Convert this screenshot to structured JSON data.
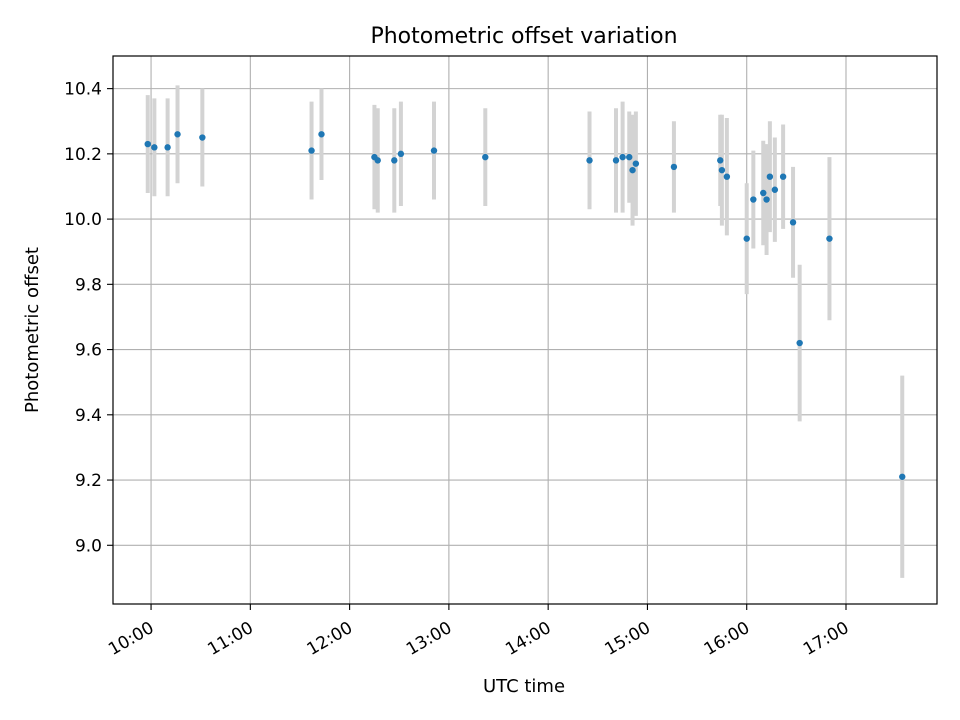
{
  "chart_data": {
    "type": "scatter",
    "title": "Photometric offset variation",
    "xlabel": "UTC time",
    "ylabel": "Photometric offset",
    "xlim": [
      "09:37",
      "17:55"
    ],
    "ylim": [
      8.82,
      10.5
    ],
    "x_ticks": [
      "10:00",
      "11:00",
      "12:00",
      "13:00",
      "14:00",
      "15:00",
      "16:00",
      "17:00"
    ],
    "y_ticks": [
      "9.0",
      "9.2",
      "9.4",
      "9.6",
      "9.8",
      "10.0",
      "10.2",
      "10.4"
    ],
    "grid": true,
    "colors": {
      "point": "#1f77b4",
      "errorbar": "#d3d3d3",
      "grid": "#b0b0b0"
    },
    "series": [
      {
        "points": [
          {
            "x": "09:58",
            "y": 10.23,
            "err": 0.15
          },
          {
            "x": "10:02",
            "y": 10.22,
            "err": 0.15
          },
          {
            "x": "10:10",
            "y": 10.22,
            "err": 0.15
          },
          {
            "x": "10:16",
            "y": 10.26,
            "err": 0.15
          },
          {
            "x": "10:31",
            "y": 10.25,
            "err": 0.15
          },
          {
            "x": "11:37",
            "y": 10.21,
            "err": 0.15
          },
          {
            "x": "11:43",
            "y": 10.26,
            "err": 0.14
          },
          {
            "x": "12:15",
            "y": 10.19,
            "err": 0.16
          },
          {
            "x": "12:17",
            "y": 10.18,
            "err": 0.16
          },
          {
            "x": "12:27",
            "y": 10.18,
            "err": 0.16
          },
          {
            "x": "12:31",
            "y": 10.2,
            "err": 0.16
          },
          {
            "x": "12:51",
            "y": 10.21,
            "err": 0.15
          },
          {
            "x": "13:22",
            "y": 10.19,
            "err": 0.15
          },
          {
            "x": "14:25",
            "y": 10.18,
            "err": 0.15
          },
          {
            "x": "14:41",
            "y": 10.18,
            "err": 0.16
          },
          {
            "x": "14:45",
            "y": 10.19,
            "err": 0.17
          },
          {
            "x": "14:49",
            "y": 10.19,
            "err": 0.14
          },
          {
            "x": "14:51",
            "y": 10.15,
            "err": 0.17
          },
          {
            "x": "14:53",
            "y": 10.17,
            "err": 0.16
          },
          {
            "x": "15:16",
            "y": 10.16,
            "err": 0.14
          },
          {
            "x": "15:44",
            "y": 10.18,
            "err": 0.14
          },
          {
            "x": "15:45",
            "y": 10.15,
            "err": 0.17
          },
          {
            "x": "15:48",
            "y": 10.13,
            "err": 0.18
          },
          {
            "x": "16:00",
            "y": 9.94,
            "err": 0.17
          },
          {
            "x": "16:04",
            "y": 10.06,
            "err": 0.15
          },
          {
            "x": "16:10",
            "y": 10.08,
            "err": 0.16
          },
          {
            "x": "16:12",
            "y": 10.06,
            "err": 0.17
          },
          {
            "x": "16:14",
            "y": 10.13,
            "err": 0.17
          },
          {
            "x": "16:17",
            "y": 10.09,
            "err": 0.16
          },
          {
            "x": "16:22",
            "y": 10.13,
            "err": 0.16
          },
          {
            "x": "16:28",
            "y": 9.99,
            "err": 0.17
          },
          {
            "x": "16:32",
            "y": 9.62,
            "err": 0.24
          },
          {
            "x": "16:50",
            "y": 9.94,
            "err": 0.25
          },
          {
            "x": "17:34",
            "y": 9.21,
            "err": 0.31
          }
        ]
      }
    ]
  }
}
